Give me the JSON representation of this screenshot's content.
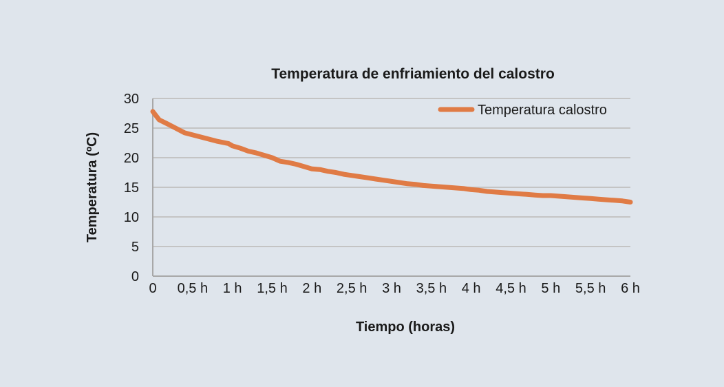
{
  "chart_data": {
    "type": "line",
    "title": "Temperatura de enfriamiento del calostro",
    "xlabel": "Tiempo (horas)",
    "ylabel": "Temperatura (ºC)",
    "xlim": [
      0,
      6
    ],
    "ylim": [
      0,
      30
    ],
    "x_ticks": [
      {
        "value": 0,
        "label": "0"
      },
      {
        "value": 0.5,
        "label": "0,5 h"
      },
      {
        "value": 1,
        "label": "1 h"
      },
      {
        "value": 1.5,
        "label": "1,5 h"
      },
      {
        "value": 2,
        "label": "2 h"
      },
      {
        "value": 2.5,
        "label": "2,5 h"
      },
      {
        "value": 3,
        "label": "3 h"
      },
      {
        "value": 3.5,
        "label": "3,5 h"
      },
      {
        "value": 4,
        "label": "4 h"
      },
      {
        "value": 4.5,
        "label": "4,5 h"
      },
      {
        "value": 5,
        "label": "5 h"
      },
      {
        "value": 5.5,
        "label": "5,5 h"
      },
      {
        "value": 6,
        "label": "6 h"
      }
    ],
    "y_ticks": [
      0,
      5,
      10,
      15,
      20,
      25,
      30
    ],
    "grid": true,
    "legend_position": "top-right",
    "series": [
      {
        "name": "Temperatura calostro",
        "color": "#e07b45",
        "x": [
          0,
          0.08,
          0.2,
          0.4,
          0.6,
          0.8,
          0.95,
          1.0,
          1.1,
          1.2,
          1.3,
          1.5,
          1.6,
          1.7,
          1.8,
          1.9,
          2.0,
          2.1,
          2.2,
          2.3,
          2.4,
          2.5,
          2.6,
          2.7,
          2.8,
          2.9,
          3.0,
          3.1,
          3.2,
          3.3,
          3.4,
          3.5,
          3.6,
          3.7,
          3.8,
          3.9,
          4.0,
          4.1,
          4.2,
          4.3,
          4.4,
          4.5,
          4.6,
          4.7,
          4.8,
          4.9,
          5.0,
          5.1,
          5.2,
          5.3,
          5.4,
          5.5,
          5.6,
          5.7,
          5.8,
          5.9,
          6.0
        ],
        "y": [
          27.8,
          26.4,
          25.6,
          24.2,
          23.5,
          22.8,
          22.4,
          22.0,
          21.6,
          21.1,
          20.8,
          20.0,
          19.4,
          19.2,
          18.9,
          18.5,
          18.1,
          18.0,
          17.7,
          17.5,
          17.2,
          17.0,
          16.8,
          16.6,
          16.4,
          16.2,
          16.0,
          15.8,
          15.6,
          15.5,
          15.3,
          15.2,
          15.1,
          15.0,
          14.9,
          14.8,
          14.6,
          14.5,
          14.3,
          14.2,
          14.1,
          14.0,
          13.9,
          13.8,
          13.7,
          13.6,
          13.6,
          13.5,
          13.4,
          13.3,
          13.2,
          13.1,
          13.0,
          12.9,
          12.8,
          12.7,
          12.5
        ]
      }
    ]
  }
}
